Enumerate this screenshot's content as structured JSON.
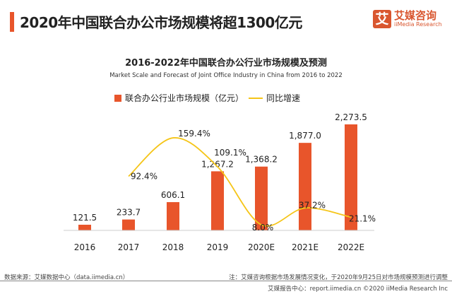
{
  "header": {
    "title": "2020年中国联合办公市场规模将超1300亿元",
    "logo_cn": "艾媒咨询",
    "logo_en": "iiMedia Research",
    "logo_mark": "艾"
  },
  "chart_data": {
    "type": "bar",
    "title": "2016-2022年中国联合办公行业市场规模及预测",
    "subtitle": "Market Scale and Forecast of Joint Office Industry in China from 2016 to 2022",
    "categories": [
      "2016",
      "2017",
      "2018",
      "2019",
      "2020E",
      "2021E",
      "2022E"
    ],
    "series": [
      {
        "name": "联合办公行业市场规模（亿元）",
        "type": "bar",
        "color": "#e8552b",
        "values": [
          121.5,
          233.7,
          606.1,
          1267.2,
          1368.2,
          1877.0,
          2273.5
        ],
        "labels": [
          "121.5",
          "233.7",
          "606.1",
          "1,267.2",
          "1,368.2",
          "1,877.0",
          "2,273.5"
        ]
      },
      {
        "name": "同比增速",
        "type": "line",
        "color": "#f5c518",
        "values": [
          null,
          92.4,
          159.4,
          109.1,
          8.0,
          37.2,
          21.1
        ],
        "labels": [
          "",
          "92.4%",
          "159.4%",
          "109.1%",
          "8.0%",
          "37.2%",
          "21.1%"
        ]
      }
    ],
    "legend": "top-center",
    "grid": false
  },
  "footer": {
    "source": "数据来源：艾媒数据中心（data.iimedia.cn）",
    "note": "注：艾媒咨询根据市场发展情况变化，于2020年9月25日对市场规模预测进行调整",
    "report": "艾媒报告中心：report.iimedia.cn ©2020  iiMedia Research  Inc"
  }
}
